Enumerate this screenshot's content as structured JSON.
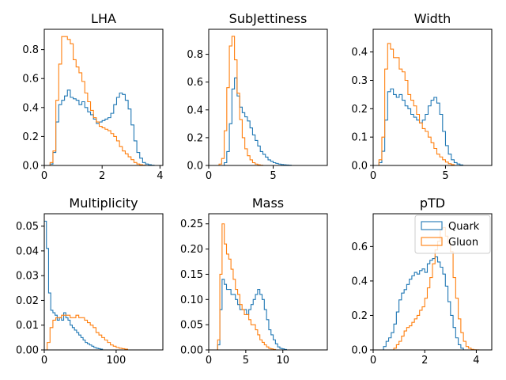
{
  "colors": {
    "quark": "#1f77b4",
    "gluon": "#ff7f0e"
  },
  "legend": {
    "placement": "top-right",
    "panel": 5,
    "entries": [
      "Quark",
      "Gluon"
    ]
  },
  "chart_data": [
    {
      "type": "histogram-step",
      "title": "LHA",
      "xlim": [
        0,
        4.1
      ],
      "ylim": [
        0,
        0.94
      ],
      "xticks": [
        0,
        2,
        4
      ],
      "yticks": [
        0,
        0.2,
        0.4,
        0.6,
        0.8
      ],
      "xticklabels": [
        "0",
        "2",
        "4"
      ],
      "yticklabels": [
        "0.0",
        "0.2",
        "0.4",
        "0.6",
        "0.8"
      ],
      "series": [
        {
          "name": "Quark",
          "bin_width": 0.1,
          "x_start": 0.2,
          "values": [
            0.01,
            0.09,
            0.3,
            0.42,
            0.45,
            0.48,
            0.52,
            0.47,
            0.46,
            0.45,
            0.42,
            0.44,
            0.4,
            0.37,
            0.35,
            0.32,
            0.29,
            0.3,
            0.31,
            0.32,
            0.33,
            0.36,
            0.42,
            0.47,
            0.5,
            0.49,
            0.45,
            0.39,
            0.28,
            0.17,
            0.09,
            0.05,
            0.02,
            0.01,
            0.005,
            0.002
          ]
        },
        {
          "name": "Gluon",
          "bin_width": 0.1,
          "x_start": 0.2,
          "values": [
            0.02,
            0.1,
            0.45,
            0.7,
            0.89,
            0.89,
            0.87,
            0.84,
            0.73,
            0.68,
            0.64,
            0.58,
            0.5,
            0.44,
            0.38,
            0.33,
            0.3,
            0.27,
            0.26,
            0.25,
            0.24,
            0.22,
            0.2,
            0.17,
            0.13,
            0.1,
            0.08,
            0.06,
            0.04,
            0.02,
            0.01,
            0.005,
            0.002
          ]
        }
      ]
    },
    {
      "type": "histogram-step",
      "title": "SubJettiness",
      "xlim": [
        0,
        9.2
      ],
      "ylim": [
        0,
        0.98
      ],
      "xticks": [
        0,
        5
      ],
      "yticks": [
        0,
        0.2,
        0.4,
        0.6,
        0.8
      ],
      "xticklabels": [
        "0",
        "5"
      ],
      "yticklabels": [
        "0.0",
        "0.2",
        "0.4",
        "0.6",
        "0.8"
      ],
      "series": [
        {
          "name": "Quark",
          "bin_width": 0.2,
          "x_start": 1.2,
          "values": [
            0.02,
            0.1,
            0.3,
            0.55,
            0.63,
            0.5,
            0.42,
            0.38,
            0.35,
            0.32,
            0.27,
            0.22,
            0.18,
            0.14,
            0.1,
            0.08,
            0.06,
            0.04,
            0.03,
            0.02,
            0.015,
            0.01,
            0.007,
            0.005,
            0.003,
            0.002
          ]
        },
        {
          "name": "Gluon",
          "bin_width": 0.2,
          "x_start": 0.8,
          "values": [
            0.01,
            0.05,
            0.25,
            0.56,
            0.86,
            0.93,
            0.76,
            0.52,
            0.33,
            0.2,
            0.12,
            0.07,
            0.04,
            0.02,
            0.01,
            0.005,
            0.002
          ]
        }
      ]
    },
    {
      "type": "histogram-step",
      "title": "Width",
      "xlim": [
        0,
        8.2
      ],
      "ylim": [
        0,
        0.48
      ],
      "xticks": [
        0,
        5
      ],
      "yticks": [
        0,
        0.1,
        0.2,
        0.3,
        0.4
      ],
      "xticklabels": [
        "0",
        "5"
      ],
      "yticklabels": [
        "0.0",
        "0.1",
        "0.2",
        "0.3",
        "0.4"
      ],
      "series": [
        {
          "name": "Quark",
          "bin_width": 0.2,
          "x_start": 0.4,
          "values": [
            0.01,
            0.05,
            0.16,
            0.26,
            0.27,
            0.25,
            0.24,
            0.25,
            0.23,
            0.21,
            0.2,
            0.18,
            0.17,
            0.16,
            0.15,
            0.16,
            0.18,
            0.21,
            0.23,
            0.24,
            0.22,
            0.18,
            0.12,
            0.07,
            0.04,
            0.02,
            0.01,
            0.005,
            0.002
          ]
        },
        {
          "name": "Gluon",
          "bin_width": 0.2,
          "x_start": 0.4,
          "values": [
            0.02,
            0.1,
            0.34,
            0.43,
            0.41,
            0.38,
            0.38,
            0.34,
            0.33,
            0.3,
            0.25,
            0.23,
            0.21,
            0.18,
            0.15,
            0.13,
            0.12,
            0.1,
            0.08,
            0.06,
            0.04,
            0.03,
            0.02,
            0.012,
            0.006,
            0.003
          ]
        }
      ]
    },
    {
      "type": "histogram-step",
      "title": "Multiplicity",
      "xlim": [
        0,
        165
      ],
      "ylim": [
        0,
        0.055
      ],
      "xticks": [
        0,
        100
      ],
      "yticks": [
        0,
        0.01,
        0.02,
        0.03,
        0.04,
        0.05
      ],
      "xticklabels": [
        "0",
        "100"
      ],
      "yticklabels": [
        "0.00",
        "0.01",
        "0.02",
        "0.03",
        "0.04",
        "0.05"
      ],
      "series": [
        {
          "name": "Quark",
          "bin_width": 3,
          "x_start": 0,
          "values": [
            0.052,
            0.041,
            0.023,
            0.016,
            0.015,
            0.014,
            0.012,
            0.013,
            0.012,
            0.015,
            0.013,
            0.012,
            0.01,
            0.009,
            0.008,
            0.007,
            0.006,
            0.005,
            0.004,
            0.003,
            0.0025,
            0.002,
            0.0015,
            0.001,
            0.0007,
            0.0005,
            0.0003
          ]
        },
        {
          "name": "Gluon",
          "bin_width": 4,
          "x_start": 4,
          "values": [
            0.003,
            0.009,
            0.012,
            0.013,
            0.013,
            0.014,
            0.014,
            0.014,
            0.013,
            0.013,
            0.014,
            0.013,
            0.013,
            0.012,
            0.011,
            0.01,
            0.009,
            0.007,
            0.006,
            0.005,
            0.004,
            0.003,
            0.002,
            0.0015,
            0.001,
            0.0007,
            0.0005,
            0.0003
          ]
        }
      ]
    },
    {
      "type": "histogram-step",
      "title": "Mass",
      "xlim": [
        0,
        16
      ],
      "ylim": [
        0,
        0.27
      ],
      "xticks": [
        0,
        5,
        10
      ],
      "yticks": [
        0,
        0.05,
        0.1,
        0.15,
        0.2,
        0.25
      ],
      "xticklabels": [
        "0",
        "5",
        "10"
      ],
      "yticklabels": [
        "0.00",
        "0.05",
        "0.10",
        "0.15",
        "0.20",
        "0.25"
      ],
      "series": [
        {
          "name": "Quark",
          "bin_width": 0.3,
          "x_start": 1.2,
          "values": [
            0.01,
            0.08,
            0.14,
            0.13,
            0.12,
            0.12,
            0.11,
            0.11,
            0.1,
            0.09,
            0.08,
            0.08,
            0.08,
            0.07,
            0.08,
            0.09,
            0.1,
            0.11,
            0.12,
            0.11,
            0.1,
            0.08,
            0.06,
            0.04,
            0.03,
            0.02,
            0.012,
            0.006,
            0.003,
            0.002,
            0.001
          ]
        },
        {
          "name": "Gluon",
          "bin_width": 0.3,
          "x_start": 1.2,
          "values": [
            0.02,
            0.15,
            0.25,
            0.21,
            0.19,
            0.18,
            0.16,
            0.14,
            0.12,
            0.11,
            0.09,
            0.08,
            0.07,
            0.07,
            0.06,
            0.05,
            0.05,
            0.04,
            0.03,
            0.02,
            0.015,
            0.01,
            0.006,
            0.003,
            0.002,
            0.001
          ]
        }
      ]
    },
    {
      "type": "histogram-step",
      "title": "pTD",
      "xlim": [
        0,
        4.6
      ],
      "ylim": [
        0,
        0.79
      ],
      "xticks": [
        0,
        2,
        4
      ],
      "yticks": [
        0,
        0.2,
        0.4,
        0.6
      ],
      "xticklabels": [
        "0",
        "2",
        "4"
      ],
      "yticklabels": [
        "0.0",
        "0.2",
        "0.4",
        "0.6"
      ],
      "series": [
        {
          "name": "Quark",
          "bin_width": 0.1,
          "x_start": 0.4,
          "values": [
            0.02,
            0.05,
            0.07,
            0.1,
            0.15,
            0.22,
            0.29,
            0.33,
            0.35,
            0.38,
            0.41,
            0.43,
            0.45,
            0.44,
            0.46,
            0.47,
            0.45,
            0.5,
            0.52,
            0.53,
            0.54,
            0.51,
            0.48,
            0.44,
            0.37,
            0.28,
            0.2,
            0.13,
            0.07,
            0.03,
            0.01
          ]
        },
        {
          "name": "Gluon",
          "bin_width": 0.1,
          "x_start": 0.8,
          "values": [
            0.01,
            0.03,
            0.05,
            0.08,
            0.11,
            0.13,
            0.14,
            0.16,
            0.18,
            0.2,
            0.23,
            0.25,
            0.3,
            0.36,
            0.42,
            0.5,
            0.58,
            0.63,
            0.7,
            0.71,
            0.66,
            0.62,
            0.57,
            0.42,
            0.3,
            0.18,
            0.1,
            0.05,
            0.02,
            0.01,
            0.003,
            0.001,
            0.0005
          ]
        }
      ]
    }
  ]
}
